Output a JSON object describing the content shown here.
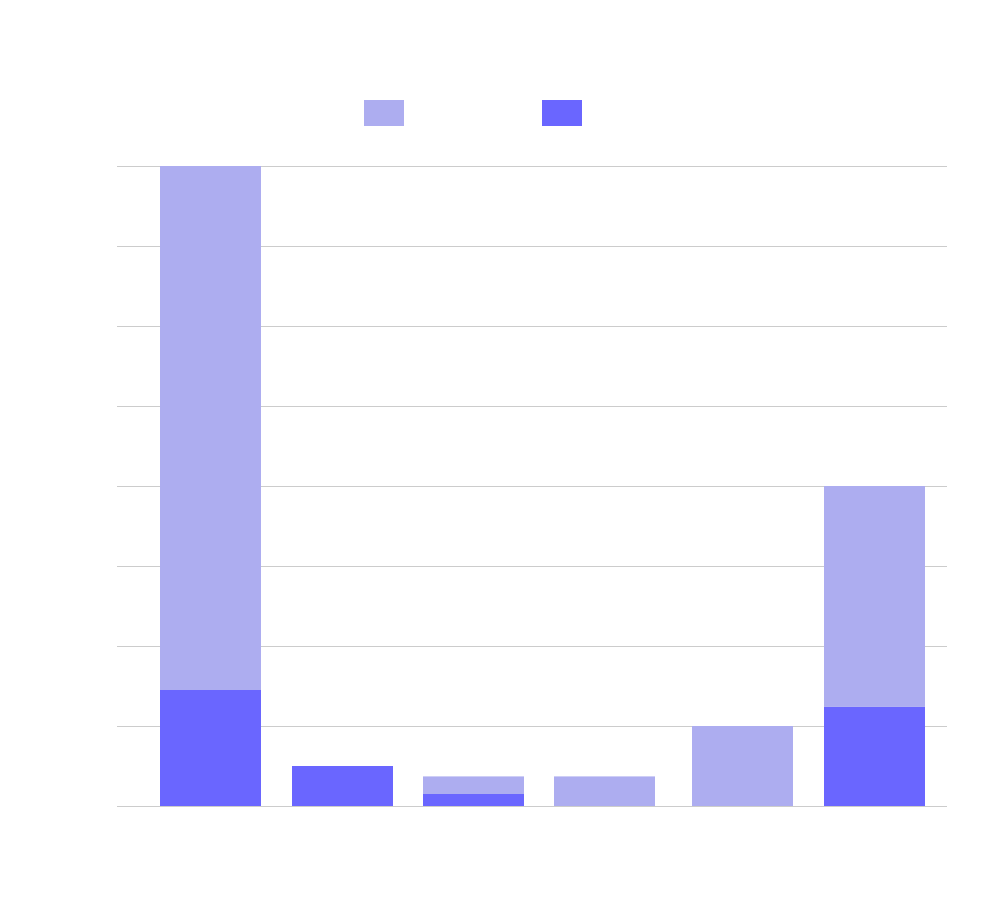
{
  "chart_data": {
    "type": "bar",
    "stacked": true,
    "title": "",
    "xlabel": "",
    "ylabel": "",
    "categories": [
      "",
      "",
      "",
      "",
      "",
      ""
    ],
    "ylim": [
      0,
      8
    ],
    "y_gridlines": [
      0,
      1,
      2,
      3,
      4,
      5,
      6,
      7,
      8
    ],
    "grid": true,
    "legend_placement": "top-center",
    "series": [
      {
        "color": "#6a66ff",
        "values": [
          1.45,
          0.5,
          0.15,
          0.0,
          0.0,
          1.24
        ]
      },
      {
        "color": "#adadf0",
        "values": [
          6.55,
          0.0,
          0.22,
          0.37,
          1.0,
          2.76
        ]
      }
    ],
    "legend_order": [
      1,
      0
    ],
    "colors": {
      "grid": "#cccccc",
      "background": "#ffffff"
    }
  }
}
